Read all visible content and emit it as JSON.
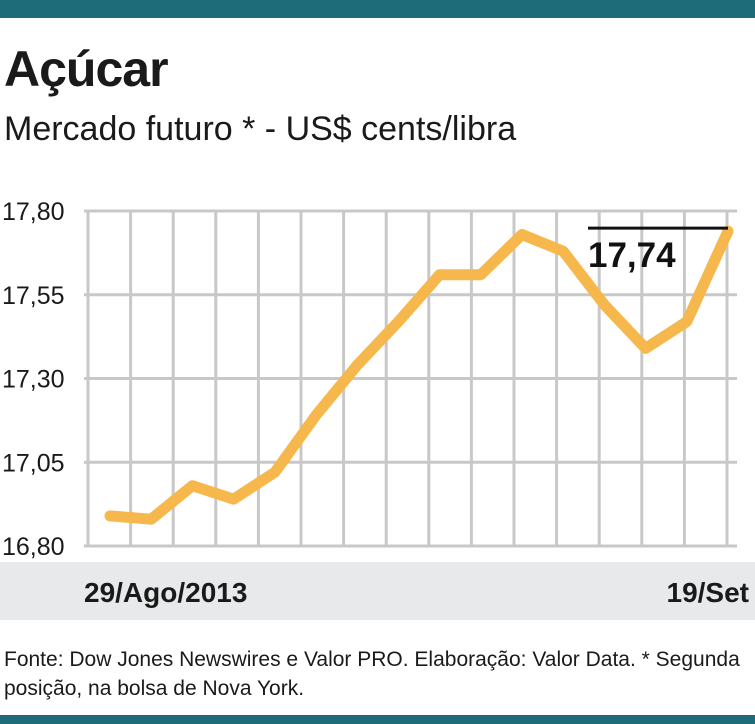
{
  "title": "Açúcar",
  "subtitle": "Mercado futuro * - US$ cents/libra",
  "source": "Fonte: Dow Jones Newswires e Valor PRO. Elaboração: Valor Data. * Segunda posição, na bolsa de Nova York.",
  "x_start_label": "29/Ago/2013",
  "x_end_label": "19/Set",
  "highlight_label": "17,74",
  "colors": {
    "line": "#f6b84c",
    "grid": "#c8c8c8",
    "band": "#1e6b7a",
    "axis_band": "#e7e9ea"
  },
  "chart_data": {
    "type": "line",
    "title": "Açúcar",
    "ylabel": "US$ cents/libra",
    "ylim": [
      16.8,
      17.8
    ],
    "yticks": [
      "17,80",
      "17,55",
      "17,30",
      "17,05",
      "16,80"
    ],
    "ytick_values": [
      17.8,
      17.55,
      17.3,
      17.05,
      16.8
    ],
    "grid": true,
    "values": [
      16.89,
      16.88,
      16.98,
      16.94,
      17.02,
      17.19,
      17.34,
      17.47,
      17.61,
      17.61,
      17.73,
      17.68,
      17.52,
      17.39,
      17.47,
      17.74
    ]
  }
}
